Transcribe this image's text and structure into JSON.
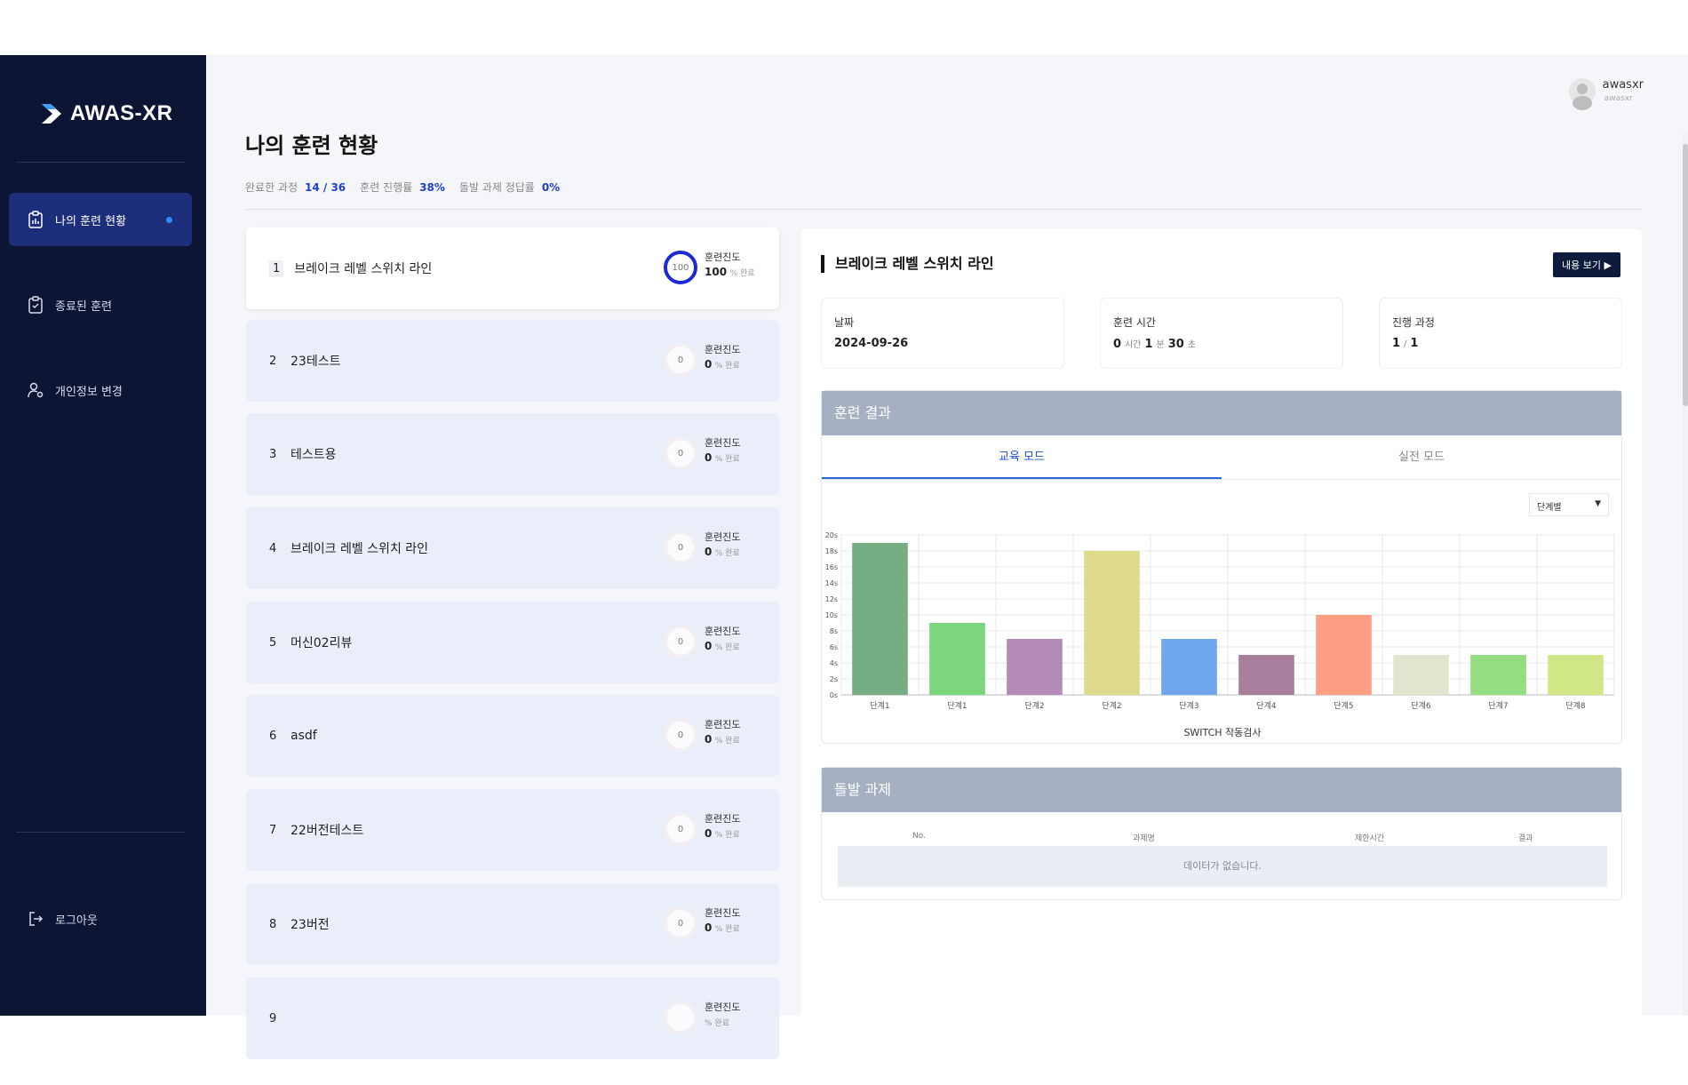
{
  "app": {
    "name": "AWAS-XR"
  },
  "sidebar": {
    "items": [
      {
        "label": "나의 훈련 현황",
        "active": true
      },
      {
        "label": "종료된 훈련",
        "active": false
      },
      {
        "label": "개인정보 변경",
        "active": false
      }
    ],
    "logout_label": "로그아웃"
  },
  "user": {
    "name": "awasxr",
    "sub": "awasxr"
  },
  "page": {
    "title": "나의 훈련 현황",
    "summary": [
      {
        "label": "완료한 과정",
        "value": "14 / 36"
      },
      {
        "label": "훈련 진행률",
        "value": "38%"
      },
      {
        "label": "돌발 과제 정답률",
        "value": "0%"
      }
    ]
  },
  "courses": {
    "progress_label": "훈련진도",
    "unit_label": "% 완료",
    "items": [
      {
        "num": "1",
        "title": "브레이크 레벨 스위치 라인",
        "progress": "100",
        "active": true
      },
      {
        "num": "2",
        "title": "23테스트",
        "progress": "0",
        "active": false
      },
      {
        "num": "3",
        "title": "테스트용",
        "progress": "0",
        "active": false
      },
      {
        "num": "4",
        "title": "브레이크 레벨 스위치 라인",
        "progress": "0",
        "active": false
      },
      {
        "num": "5",
        "title": "머신02리뷰",
        "progress": "0",
        "active": false
      },
      {
        "num": "6",
        "title": "asdf",
        "progress": "0",
        "active": false
      },
      {
        "num": "7",
        "title": "22버전테스트",
        "progress": "0",
        "active": false
      },
      {
        "num": "8",
        "title": "23버전",
        "progress": "0",
        "active": false
      },
      {
        "num": "9",
        "title": "",
        "progress": "",
        "active": false
      }
    ]
  },
  "detail": {
    "title": "브레이크 레벨 스위치 라인",
    "view_button": "내용 보기",
    "date": {
      "label": "날짜",
      "value": "2024-09-26"
    },
    "time": {
      "label": "훈련 시간",
      "h": "0",
      "h_unit": "시간",
      "m": "1",
      "m_unit": "분",
      "s": "30",
      "s_unit": "초"
    },
    "course_progress": {
      "label": "진행 과정",
      "current": "1",
      "sep": "/",
      "total": "1"
    },
    "result": {
      "title": "훈련 결과",
      "tabs": [
        {
          "label": "교육 모드",
          "active": true
        },
        {
          "label": "실전 모드",
          "active": false
        }
      ],
      "select_value": "단계별"
    },
    "sudden": {
      "title": "돌발 과제",
      "columns": [
        "No.",
        "과제명",
        "제한시간",
        "결과"
      ],
      "empty_text": "데이터가 없습니다."
    }
  },
  "chart_data": {
    "type": "bar",
    "title": "SWITCH 작동검사",
    "categories": [
      "단계1",
      "단계1",
      "단계2",
      "단계2",
      "단계3",
      "단계4",
      "단계5",
      "단계6",
      "단계7",
      "단계8"
    ],
    "values": [
      19,
      9,
      7,
      18,
      7,
      5,
      10,
      5,
      5,
      5
    ],
    "colors": [
      "#77ad83",
      "#7bd67e",
      "#b48bb7",
      "#dddb8b",
      "#6fa6ec",
      "#a77e9c",
      "#fd9e85",
      "#e0e6cd",
      "#94dd80",
      "#cfe787"
    ],
    "y_ticks": [
      "0s",
      "2s",
      "4s",
      "6s",
      "8s",
      "10s",
      "12s",
      "14s",
      "16s",
      "18s",
      "20s"
    ],
    "ylim": [
      0,
      20
    ],
    "grid": true
  }
}
